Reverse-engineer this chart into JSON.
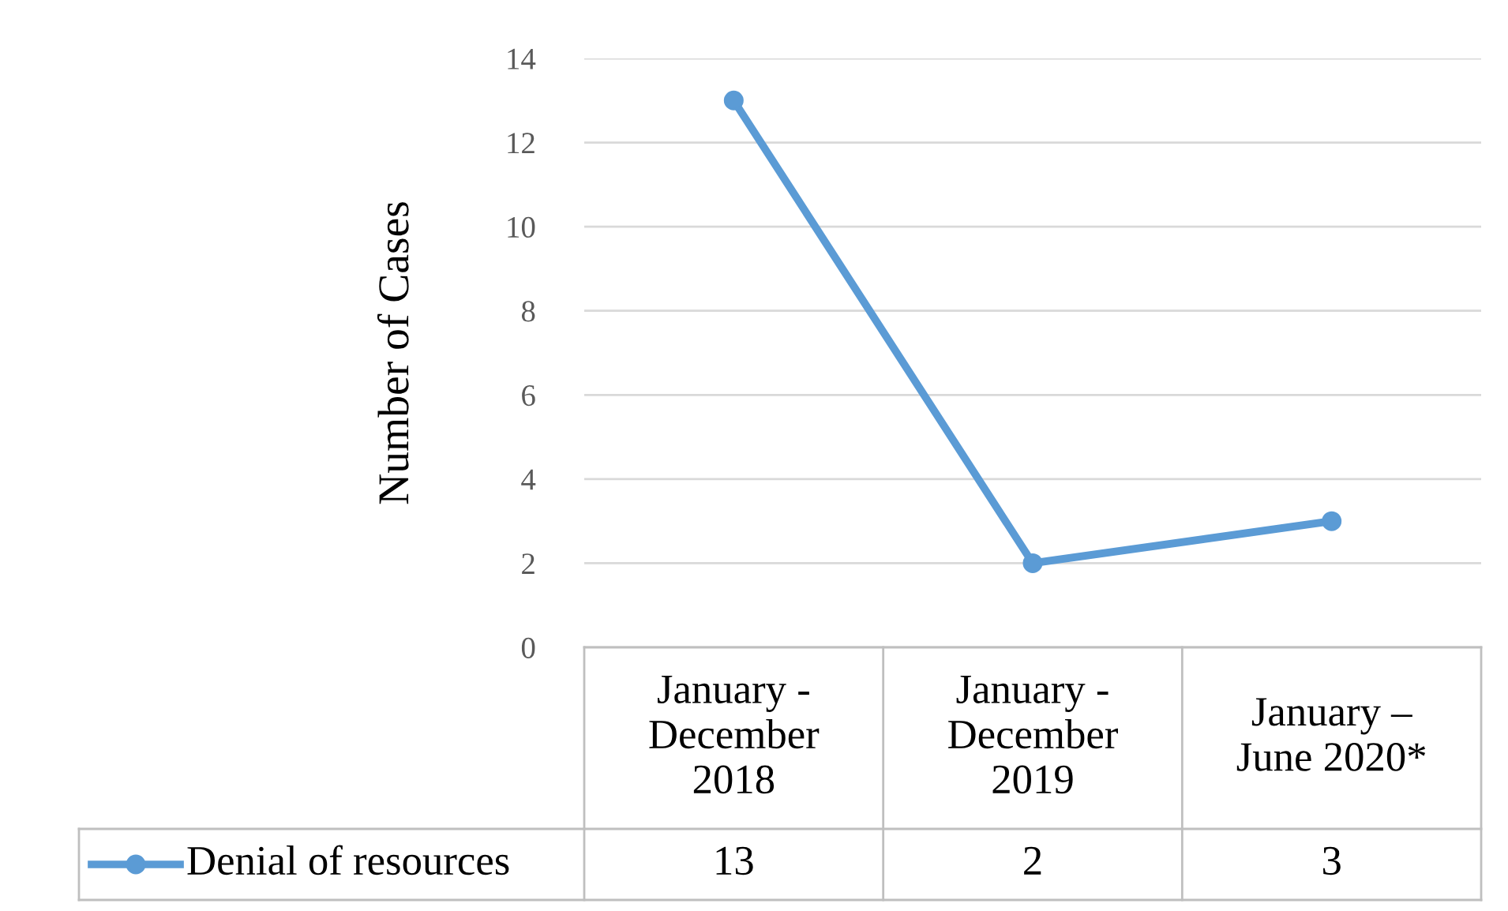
{
  "chart_data": {
    "type": "line",
    "ylabel": "Number of Cases",
    "categories": [
      "January -\nDecember\n2018",
      "January -\nDecember\n2019",
      "January –\nJune 2020*"
    ],
    "series": [
      {
        "name": "Denial of resources",
        "color": "#5b9bd5",
        "values": [
          13,
          2,
          3
        ]
      }
    ],
    "ylim": [
      0,
      14
    ],
    "yticks": [
      0,
      2,
      4,
      6,
      8,
      10,
      12,
      14
    ],
    "grid": "y",
    "marker": "circle",
    "line_style": "solid",
    "data_labels": true,
    "legend": "bottom"
  }
}
